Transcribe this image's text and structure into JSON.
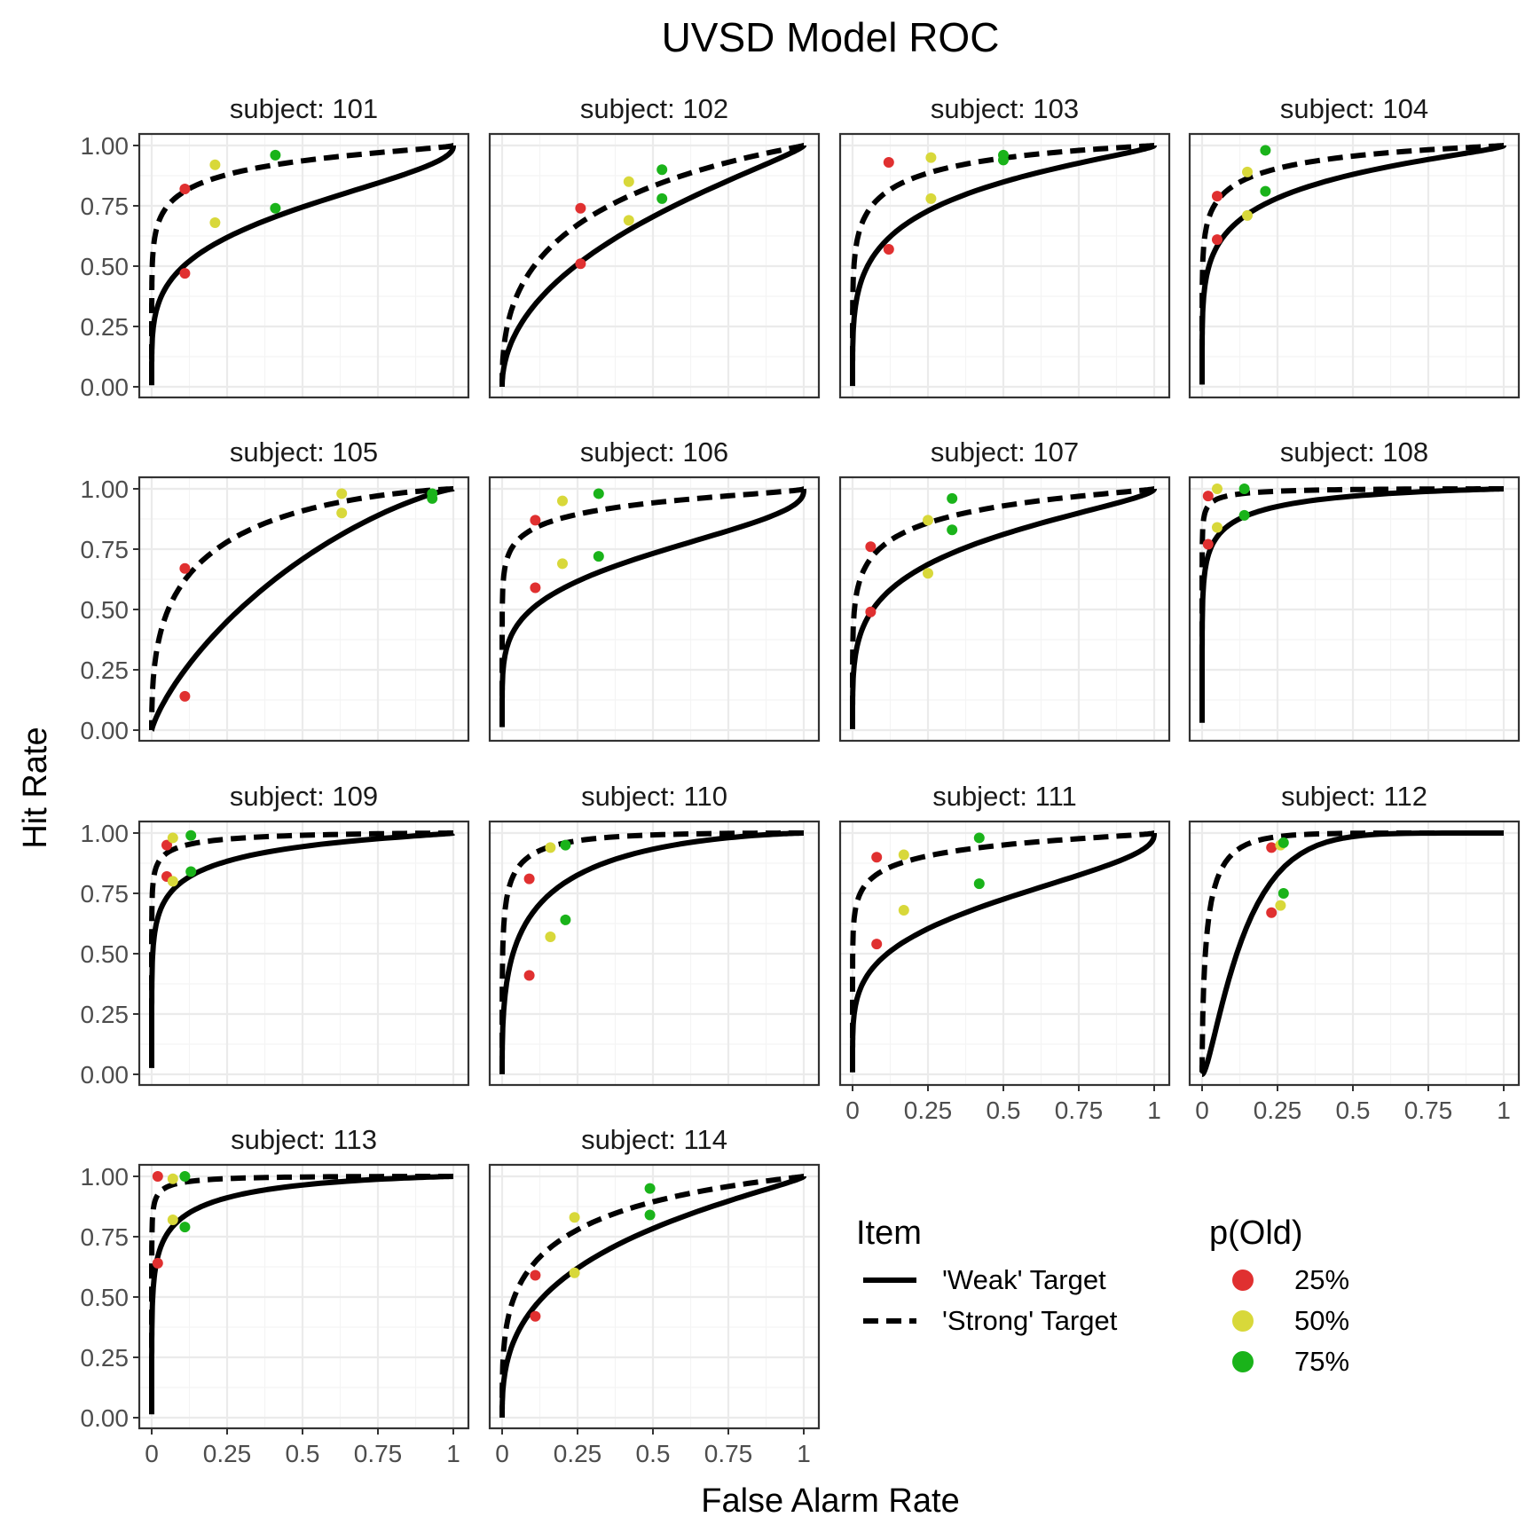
{
  "chart_data": {
    "type": "scatter",
    "title": "UVSD Model ROC",
    "xlabel": "False Alarm Rate",
    "ylabel": "Hit Rate",
    "xlim": [
      0,
      1
    ],
    "ylim": [
      0,
      1
    ],
    "x_ticks": [
      "0",
      "0.25",
      "0.5",
      "0.75",
      "1"
    ],
    "y_ticks": [
      "0.00",
      "0.25",
      "0.50",
      "0.75",
      "1.00"
    ],
    "strip_prefix": "subject: ",
    "grid": true,
    "legend_position": "bottom-right",
    "legends": {
      "item": {
        "title": "Item",
        "entries": [
          {
            "label": "'Weak' Target",
            "linetype": "solid"
          },
          {
            "label": "'Strong' Target",
            "linetype": "dashed"
          }
        ]
      },
      "p_old": {
        "title": "p(Old)",
        "entries": [
          {
            "label": "25%",
            "color": "#e03030"
          },
          {
            "label": "50%",
            "color": "#d8d83a"
          },
          {
            "label": "75%",
            "color": "#1ab31a"
          }
        ]
      }
    },
    "colors": {
      "25%": "#e03030",
      "50%": "#d8d83a",
      "75%": "#1ab31a"
    },
    "panels": [
      {
        "subject": "101",
        "weak_d": 1.25,
        "weak_s": 1.9,
        "strong_d": 2.9,
        "strong_s": 1.9,
        "points": [
          {
            "item": "weak",
            "p": "25%",
            "x": 0.11,
            "y": 0.47
          },
          {
            "item": "weak",
            "p": "50%",
            "x": 0.21,
            "y": 0.68
          },
          {
            "item": "weak",
            "p": "75%",
            "x": 0.41,
            "y": 0.74
          },
          {
            "item": "strong",
            "p": "25%",
            "x": 0.11,
            "y": 0.82
          },
          {
            "item": "strong",
            "p": "50%",
            "x": 0.21,
            "y": 0.92
          },
          {
            "item": "strong",
            "p": "75%",
            "x": 0.41,
            "y": 0.96
          }
        ]
      },
      {
        "subject": "102",
        "weak_d": 0.7,
        "weak_s": 1.3,
        "strong_d": 1.25,
        "strong_s": 1.3,
        "points": [
          {
            "item": "weak",
            "p": "25%",
            "x": 0.26,
            "y": 0.51
          },
          {
            "item": "weak",
            "p": "50%",
            "x": 0.42,
            "y": 0.69
          },
          {
            "item": "weak",
            "p": "75%",
            "x": 0.53,
            "y": 0.78
          },
          {
            "item": "strong",
            "p": "25%",
            "x": 0.26,
            "y": 0.74
          },
          {
            "item": "strong",
            "p": "50%",
            "x": 0.42,
            "y": 0.85
          },
          {
            "item": "strong",
            "p": "75%",
            "x": 0.53,
            "y": 0.9
          }
        ]
      },
      {
        "subject": "103",
        "weak_d": 1.65,
        "weak_s": 1.6,
        "strong_d": 2.6,
        "strong_s": 1.6,
        "points": [
          {
            "item": "weak",
            "p": "25%",
            "x": 0.12,
            "y": 0.57
          },
          {
            "item": "weak",
            "p": "50%",
            "x": 0.26,
            "y": 0.78
          },
          {
            "item": "weak",
            "p": "75%",
            "x": 0.5,
            "y": 0.94
          },
          {
            "item": "strong",
            "p": "25%",
            "x": 0.12,
            "y": 0.93
          },
          {
            "item": "strong",
            "p": "50%",
            "x": 0.26,
            "y": 0.95
          },
          {
            "item": "strong",
            "p": "75%",
            "x": 0.5,
            "y": 0.96
          }
        ]
      },
      {
        "subject": "104",
        "weak_d": 2.0,
        "weak_s": 1.7,
        "strong_d": 2.9,
        "strong_s": 1.7,
        "points": [
          {
            "item": "weak",
            "p": "25%",
            "x": 0.05,
            "y": 0.61
          },
          {
            "item": "weak",
            "p": "50%",
            "x": 0.15,
            "y": 0.71
          },
          {
            "item": "weak",
            "p": "75%",
            "x": 0.21,
            "y": 0.81
          },
          {
            "item": "strong",
            "p": "25%",
            "x": 0.05,
            "y": 0.79
          },
          {
            "item": "strong",
            "p": "50%",
            "x": 0.15,
            "y": 0.89
          },
          {
            "item": "strong",
            "p": "75%",
            "x": 0.21,
            "y": 0.98
          }
        ]
      },
      {
        "subject": "105",
        "weak_d": 0.55,
        "weak_s": 1.0,
        "strong_d": 1.6,
        "strong_s": 1.2,
        "points": [
          {
            "item": "weak",
            "p": "25%",
            "x": 0.11,
            "y": 0.14
          },
          {
            "item": "weak",
            "p": "50%",
            "x": 0.63,
            "y": 0.9
          },
          {
            "item": "weak",
            "p": "75%",
            "x": 0.93,
            "y": 0.96
          },
          {
            "item": "strong",
            "p": "25%",
            "x": 0.11,
            "y": 0.67
          },
          {
            "item": "strong",
            "p": "50%",
            "x": 0.63,
            "y": 0.98
          },
          {
            "item": "strong",
            "p": "75%",
            "x": 0.93,
            "y": 0.98
          }
        ]
      },
      {
        "subject": "106",
        "weak_d": 1.3,
        "weak_s": 2.1,
        "strong_d": 3.3,
        "strong_s": 2.1,
        "points": [
          {
            "item": "weak",
            "p": "25%",
            "x": 0.11,
            "y": 0.59
          },
          {
            "item": "weak",
            "p": "50%",
            "x": 0.2,
            "y": 0.69
          },
          {
            "item": "weak",
            "p": "75%",
            "x": 0.32,
            "y": 0.72
          },
          {
            "item": "strong",
            "p": "25%",
            "x": 0.11,
            "y": 0.87
          },
          {
            "item": "strong",
            "p": "50%",
            "x": 0.2,
            "y": 0.95
          },
          {
            "item": "strong",
            "p": "75%",
            "x": 0.32,
            "y": 0.98
          }
        ]
      },
      {
        "subject": "107",
        "weak_d": 1.5,
        "weak_s": 1.7,
        "strong_d": 2.5,
        "strong_s": 1.7,
        "points": [
          {
            "item": "weak",
            "p": "25%",
            "x": 0.06,
            "y": 0.49
          },
          {
            "item": "weak",
            "p": "50%",
            "x": 0.25,
            "y": 0.65
          },
          {
            "item": "weak",
            "p": "75%",
            "x": 0.33,
            "y": 0.83
          },
          {
            "item": "strong",
            "p": "25%",
            "x": 0.06,
            "y": 0.76
          },
          {
            "item": "strong",
            "p": "50%",
            "x": 0.25,
            "y": 0.87
          },
          {
            "item": "strong",
            "p": "75%",
            "x": 0.33,
            "y": 0.96
          }
        ]
      },
      {
        "subject": "108",
        "weak_d": 3.0,
        "weak_s": 1.6,
        "strong_d": 4.4,
        "strong_s": 1.6,
        "points": [
          {
            "item": "weak",
            "p": "25%",
            "x": 0.02,
            "y": 0.77
          },
          {
            "item": "weak",
            "p": "50%",
            "x": 0.05,
            "y": 0.84
          },
          {
            "item": "weak",
            "p": "75%",
            "x": 0.14,
            "y": 0.89
          },
          {
            "item": "strong",
            "p": "25%",
            "x": 0.02,
            "y": 0.97
          },
          {
            "item": "strong",
            "p": "50%",
            "x": 0.05,
            "y": 1.0
          },
          {
            "item": "strong",
            "p": "75%",
            "x": 0.14,
            "y": 1.0
          }
        ]
      },
      {
        "subject": "109",
        "weak_d": 2.7,
        "weak_s": 1.7,
        "strong_d": 4.0,
        "strong_s": 1.7,
        "points": [
          {
            "item": "weak",
            "p": "25%",
            "x": 0.05,
            "y": 0.82
          },
          {
            "item": "weak",
            "p": "50%",
            "x": 0.07,
            "y": 0.8
          },
          {
            "item": "weak",
            "p": "75%",
            "x": 0.13,
            "y": 0.84
          },
          {
            "item": "strong",
            "p": "25%",
            "x": 0.05,
            "y": 0.95
          },
          {
            "item": "strong",
            "p": "50%",
            "x": 0.07,
            "y": 0.98
          },
          {
            "item": "strong",
            "p": "75%",
            "x": 0.13,
            "y": 0.99
          }
        ]
      },
      {
        "subject": "110",
        "weak_d": 1.8,
        "weak_s": 1.2,
        "strong_d": 2.9,
        "strong_s": 1.2,
        "points": [
          {
            "item": "weak",
            "p": "25%",
            "x": 0.09,
            "y": 0.41
          },
          {
            "item": "weak",
            "p": "50%",
            "x": 0.16,
            "y": 0.57
          },
          {
            "item": "weak",
            "p": "75%",
            "x": 0.21,
            "y": 0.64
          },
          {
            "item": "strong",
            "p": "25%",
            "x": 0.09,
            "y": 0.81
          },
          {
            "item": "strong",
            "p": "50%",
            "x": 0.16,
            "y": 0.94
          },
          {
            "item": "strong",
            "p": "75%",
            "x": 0.21,
            "y": 0.95
          }
        ]
      },
      {
        "subject": "111",
        "weak_d": 1.2,
        "weak_s": 2.0,
        "strong_d": 3.3,
        "strong_s": 2.0,
        "points": [
          {
            "item": "weak",
            "p": "25%",
            "x": 0.08,
            "y": 0.54
          },
          {
            "item": "weak",
            "p": "50%",
            "x": 0.17,
            "y": 0.68
          },
          {
            "item": "weak",
            "p": "75%",
            "x": 0.42,
            "y": 0.79
          },
          {
            "item": "strong",
            "p": "25%",
            "x": 0.08,
            "y": 0.9
          },
          {
            "item": "strong",
            "p": "50%",
            "x": 0.17,
            "y": 0.91
          },
          {
            "item": "strong",
            "p": "75%",
            "x": 0.42,
            "y": 0.98
          }
        ]
      },
      {
        "subject": "112",
        "weak_d": 1.2,
        "weak_s": 0.55,
        "strong_d": 2.3,
        "strong_s": 0.75,
        "points": [
          {
            "item": "weak",
            "p": "25%",
            "x": 0.23,
            "y": 0.67
          },
          {
            "item": "weak",
            "p": "50%",
            "x": 0.26,
            "y": 0.7
          },
          {
            "item": "weak",
            "p": "75%",
            "x": 0.27,
            "y": 0.75
          },
          {
            "item": "strong",
            "p": "25%",
            "x": 0.23,
            "y": 0.94
          },
          {
            "item": "strong",
            "p": "50%",
            "x": 0.26,
            "y": 0.95
          },
          {
            "item": "strong",
            "p": "75%",
            "x": 0.27,
            "y": 0.96
          }
        ]
      },
      {
        "subject": "113",
        "weak_d": 2.7,
        "weak_s": 1.5,
        "strong_d": 4.2,
        "strong_s": 1.5,
        "points": [
          {
            "item": "weak",
            "p": "25%",
            "x": 0.02,
            "y": 0.64
          },
          {
            "item": "weak",
            "p": "50%",
            "x": 0.07,
            "y": 0.82
          },
          {
            "item": "weak",
            "p": "75%",
            "x": 0.11,
            "y": 0.79
          },
          {
            "item": "strong",
            "p": "25%",
            "x": 0.02,
            "y": 1.0
          },
          {
            "item": "strong",
            "p": "50%",
            "x": 0.07,
            "y": 0.99
          },
          {
            "item": "strong",
            "p": "75%",
            "x": 0.11,
            "y": 1.0
          }
        ]
      },
      {
        "subject": "114",
        "weak_d": 1.1,
        "weak_s": 1.4,
        "strong_d": 1.75,
        "strong_s": 1.4,
        "points": [
          {
            "item": "weak",
            "p": "25%",
            "x": 0.11,
            "y": 0.42
          },
          {
            "item": "weak",
            "p": "50%",
            "x": 0.24,
            "y": 0.6
          },
          {
            "item": "weak",
            "p": "75%",
            "x": 0.49,
            "y": 0.84
          },
          {
            "item": "strong",
            "p": "25%",
            "x": 0.11,
            "y": 0.59
          },
          {
            "item": "strong",
            "p": "50%",
            "x": 0.24,
            "y": 0.83
          },
          {
            "item": "strong",
            "p": "75%",
            "x": 0.49,
            "y": 0.95
          }
        ]
      }
    ]
  }
}
